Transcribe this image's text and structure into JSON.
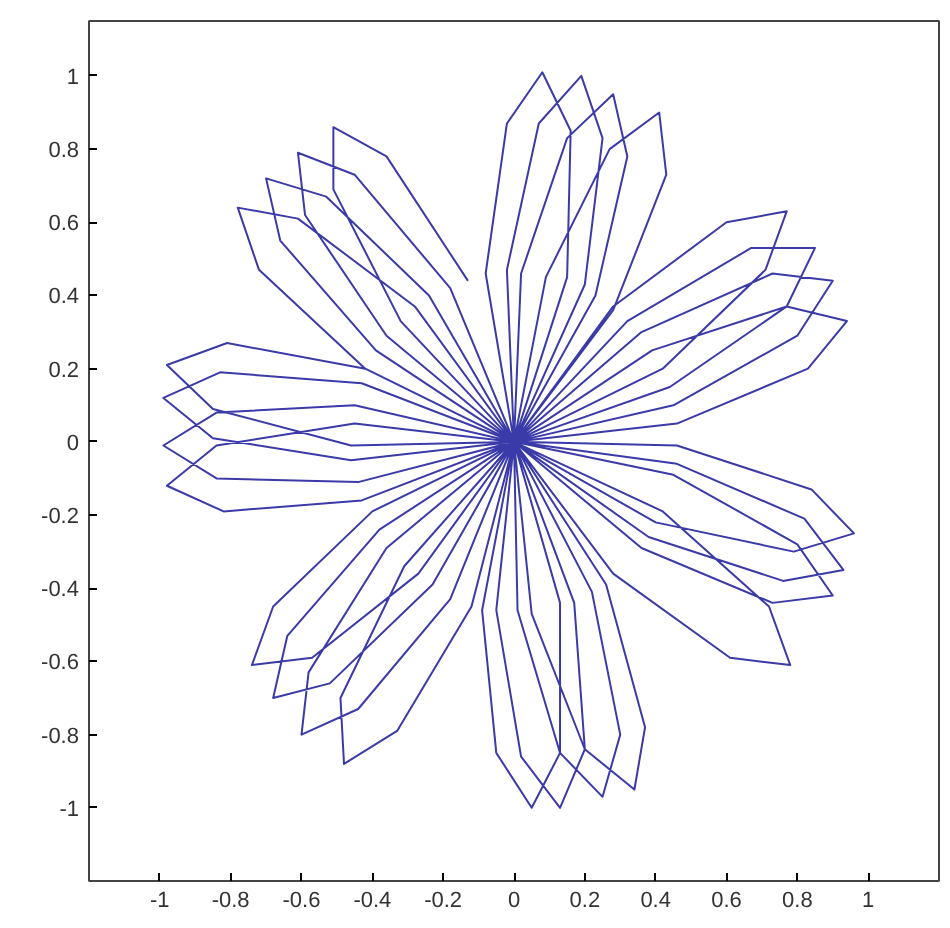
{
  "chart_data": {
    "type": "line",
    "xlim": [
      -1.2,
      1.2
    ],
    "ylim": [
      -1.2,
      1.15
    ],
    "xticks": [
      -1,
      -0.8,
      -0.6,
      -0.4,
      -0.2,
      0,
      0.2,
      0.4,
      0.6,
      0.8,
      1
    ],
    "yticks": [
      -1,
      -0.8,
      -0.6,
      -0.4,
      -0.2,
      0,
      0.2,
      0.4,
      0.6,
      0.8,
      1
    ],
    "grid": false,
    "x": [
      0,
      -0.08,
      -0.02,
      0.08,
      0.16,
      0.15,
      0,
      0.28,
      0.6,
      0.77,
      0.71,
      0.42,
      0,
      0.46,
      0.84,
      0.96,
      0.79,
      0.4,
      0,
      0.13,
      0.13,
      0.05,
      -0.05,
      -0.09,
      0,
      -0.12,
      -0.33,
      -0.48,
      -0.49,
      -0.31,
      0,
      -0.46,
      -0.85,
      -0.98,
      -0.81,
      -0.42,
      0,
      -0.42,
      -0.72,
      -0.78,
      -0.61,
      -0.28,
      0,
      -0.02,
      0.07,
      0.19,
      0.25,
      0.2,
      0,
      0.32,
      0.67,
      0.85,
      0.77,
      0.44,
      0,
      0.46,
      0.82,
      0.93,
      0.76,
      0.38,
      0,
      0.17,
      0.2,
      0.13,
      0.02,
      -0.05,
      0,
      -0.18,
      -0.44,
      -0.6,
      -0.58,
      -0.36,
      0,
      -0.46,
      -0.85,
      -0.99,
      -0.83,
      -0.43,
      0,
      -0.39,
      -0.66,
      -0.7,
      -0.53,
      -0.24,
      0,
      0.02,
      0.15,
      0.28,
      0.32,
      0.23,
      0,
      0.36,
      0.73,
      0.9,
      0.8,
      0.45,
      0,
      0.45,
      0.8,
      0.9,
      0.73,
      0.36,
      0,
      0.22,
      0.3,
      0.25,
      0.13,
      0.01,
      0,
      -0.23,
      -0.52,
      -0.68,
      -0.64,
      -0.38,
      0,
      -0.44,
      -0.84,
      -0.99,
      -0.84,
      -0.45,
      0,
      -0.36,
      -0.59,
      -0.61,
      -0.45,
      -0.18,
      0,
      0.09,
      0.27,
      0.41,
      0.43,
      0.28,
      0,
      0.39,
      0.77,
      0.94,
      0.83,
      0.46,
      0,
      0.42,
      0.72,
      0.78,
      0.61,
      0.28,
      0,
      0.26,
      0.37,
      0.34,
      0.2,
      0.05,
      0,
      -0.27,
      -0.57,
      -0.74,
      -0.68,
      -0.4,
      0,
      -0.43,
      -0.82,
      -0.98,
      -0.84,
      -0.45,
      0,
      -0.32,
      -0.51,
      -0.51,
      -0.36,
      -0.13
    ],
    "series": [
      {
        "color": "#3a3aa8",
        "values": [
          0,
          0.46,
          0.87,
          1.01,
          0.85,
          0.45,
          0,
          0.37,
          0.6,
          0.63,
          0.47,
          0.2,
          0,
          -0.01,
          -0.13,
          -0.25,
          -0.3,
          -0.22,
          0,
          -0.44,
          -0.85,
          -1.0,
          -0.85,
          -0.46,
          0,
          -0.45,
          -0.79,
          -0.88,
          -0.7,
          -0.34,
          0,
          -0.01,
          0.09,
          0.21,
          0.27,
          0.2,
          0,
          0.2,
          0.47,
          0.64,
          0.61,
          0.37,
          0,
          0.47,
          0.87,
          1.0,
          0.83,
          0.43,
          0,
          0.33,
          0.53,
          0.53,
          0.37,
          0.15,
          0,
          -0.06,
          -0.21,
          -0.35,
          -0.38,
          -0.26,
          0,
          -0.44,
          -0.84,
          -1.0,
          -0.86,
          -0.46,
          0,
          -0.43,
          -0.73,
          -0.8,
          -0.63,
          -0.29,
          0,
          -0.05,
          0.01,
          0.12,
          0.19,
          0.16,
          0,
          0.25,
          0.55,
          0.72,
          0.67,
          0.4,
          0,
          0.46,
          0.83,
          0.95,
          0.78,
          0.4,
          0,
          0.3,
          0.46,
          0.44,
          0.29,
          0.1,
          0,
          -0.09,
          -0.28,
          -0.42,
          -0.44,
          -0.29,
          0,
          -0.41,
          -0.8,
          -0.97,
          -0.85,
          -0.46,
          0,
          -0.39,
          -0.66,
          -0.7,
          -0.53,
          -0.24,
          0,
          -0.11,
          -0.1,
          -0.01,
          0.08,
          0.1,
          0,
          0.29,
          0.62,
          0.79,
          0.73,
          0.42,
          0,
          0.45,
          0.8,
          0.9,
          0.73,
          0.36,
          0,
          0.25,
          0.37,
          0.33,
          0.2,
          0.05,
          0,
          -0.19,
          -0.45,
          -0.61,
          -0.59,
          -0.36,
          0,
          -0.39,
          -0.78,
          -0.95,
          -0.84,
          -0.47,
          0,
          -0.36,
          -0.59,
          -0.61,
          -0.45,
          -0.19,
          0,
          -0.16,
          -0.19,
          -0.12,
          -0.01,
          0.05,
          0,
          0.33,
          0.69,
          0.86,
          0.78,
          0.44
        ]
      }
    ]
  }
}
